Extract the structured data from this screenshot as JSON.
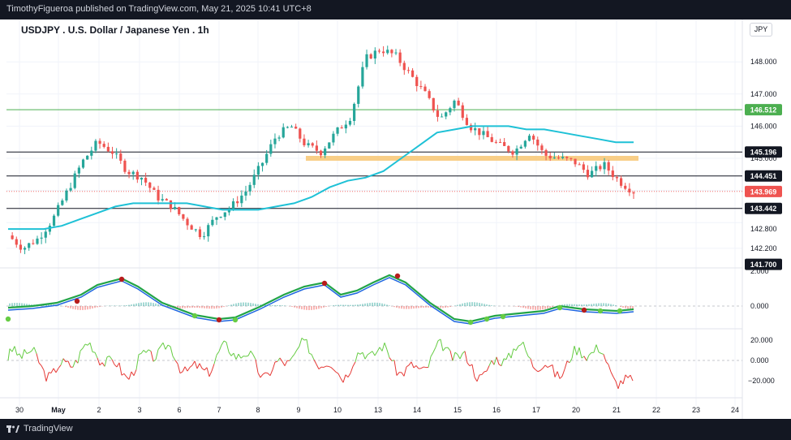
{
  "header": {
    "published_text": "TimothyFigueroa published on TradingView.com, May 21, 2025 10:41 UTC+8"
  },
  "footer": {
    "brand": "TradingView"
  },
  "symbol": {
    "title": "USDJPY . U.S. Dollar / Japanese Yen . 1h",
    "currency": "JPY"
  },
  "colors": {
    "up": "#26a69a",
    "down": "#ef5350",
    "ma": "#1ec1d6",
    "zone": "#f7c97a",
    "green_line": "#4caf50",
    "wave_top": "#22a447",
    "wave_bottom": "#1e66e0",
    "wave_red": "#b71c1c",
    "rsi_up": "#66cc44",
    "rsi_down": "#e53935"
  },
  "price_axis": {
    "ticks": [
      "148.000",
      "147.000",
      "146.000",
      "145.000",
      "142.800",
      "142.200"
    ],
    "levels": [
      {
        "value": 146.512,
        "label": "146.512",
        "style": "green"
      },
      {
        "value": 145.196,
        "label": "145.196",
        "style": "black"
      },
      {
        "value": 144.451,
        "label": "144.451",
        "style": "black"
      },
      {
        "value": 143.969,
        "label": "143.969",
        "style": "red"
      },
      {
        "value": 143.442,
        "label": "143.442",
        "style": "black"
      },
      {
        "value": 141.7,
        "label": "141.700",
        "style": "black"
      }
    ],
    "support_zone": 145.0
  },
  "osc1_axis": {
    "ticks": [
      "2.000",
      "0.000"
    ]
  },
  "osc2_axis": {
    "ticks": [
      "20.000",
      "0.000",
      "−20.000"
    ]
  },
  "time_axis": {
    "labels": [
      "30",
      "May",
      "2",
      "3",
      "6",
      "7",
      "8",
      "9",
      "10",
      "13",
      "14",
      "15",
      "16",
      "17",
      "20",
      "21",
      "22",
      "23",
      "24"
    ]
  },
  "chart_data": {
    "type": "line",
    "series": [
      {
        "values": [
          142.6,
          142.2,
          142.5,
          143.1,
          144.0,
          144.9,
          145.5,
          145.2,
          144.6,
          144.4,
          143.8,
          143.5,
          143.0,
          142.6,
          143.2,
          143.5,
          144.0,
          144.8,
          145.7,
          146.0,
          145.4,
          145.2,
          145.8,
          146.3,
          148.1,
          148.4,
          148.2,
          147.6,
          147.0,
          146.2,
          146.8,
          146.0,
          145.7,
          145.4,
          145.2,
          145.8,
          145.1,
          145.0,
          144.9,
          144.5,
          144.8,
          144.3,
          143.97
        ]
      },
      {
        "values": [
          142.8,
          142.8,
          142.8,
          142.9,
          143.1,
          143.3,
          143.5,
          143.6,
          143.6,
          143.6,
          143.6,
          143.5,
          143.4,
          143.4,
          143.4,
          143.5,
          143.6,
          143.8,
          144.1,
          144.3,
          144.4,
          144.6,
          145.0,
          145.4,
          145.8,
          145.9,
          146.0,
          146.0,
          146.0,
          145.9,
          145.9,
          145.8,
          145.7,
          145.6,
          145.5,
          145.5
        ]
      }
    ]
  }
}
